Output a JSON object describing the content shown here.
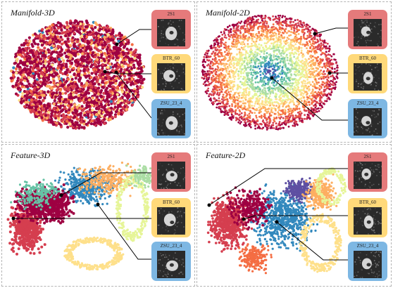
{
  "panels": [
    {
      "title": "Manifold-3D",
      "cards": [
        {
          "label": "2S1",
          "color": "#e57a7b"
        },
        {
          "label": "BTR_60",
          "color": "#ffd97a"
        },
        {
          "label": "ZSU_23_4",
          "color": "#7db7e3"
        }
      ]
    },
    {
      "title": "Manifold-2D",
      "cards": [
        {
          "label": "2S1",
          "color": "#e57a7b"
        },
        {
          "label": "BTR_60",
          "color": "#ffd97a"
        },
        {
          "label": "ZSU_23_4",
          "color": "#7db7e3"
        }
      ]
    },
    {
      "title": "Feature-3D",
      "cards": [
        {
          "label": "2S1",
          "color": "#e57a7b"
        },
        {
          "label": "BTR_60",
          "color": "#ffd97a"
        },
        {
          "label": "ZSU_23_4",
          "color": "#7db7e3"
        }
      ]
    },
    {
      "title": "Feature-2D",
      "cards": [
        {
          "label": "2S1",
          "color": "#e57a7b"
        },
        {
          "label": "BTR_60",
          "color": "#ffd97a"
        },
        {
          "label": "ZSU_23_4",
          "color": "#7db7e3"
        }
      ]
    }
  ],
  "palette": [
    "#9e0142",
    "#d53e4f",
    "#f46d43",
    "#fdae61",
    "#fee08b",
    "#e6f598",
    "#abdda4",
    "#66c2a5",
    "#3288bd",
    "#5e4fa2"
  ]
}
